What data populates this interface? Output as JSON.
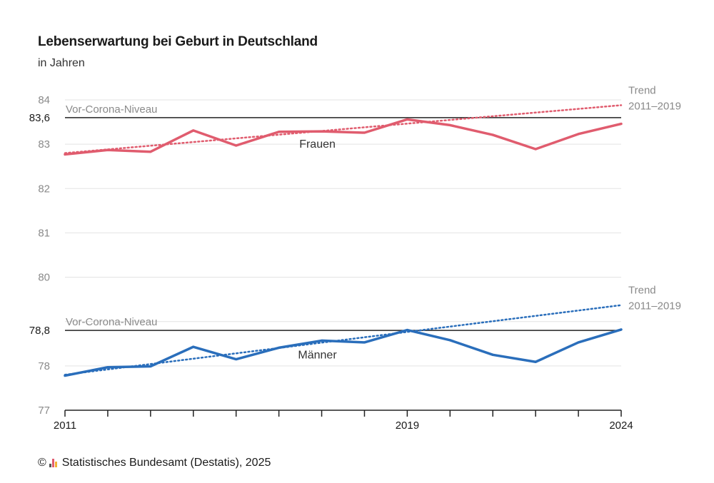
{
  "header": {
    "title": "Lebenserwartung bei Geburt in Deutschland",
    "subtitle": "in Jahren"
  },
  "footer": {
    "copyright": "©",
    "source": "Statistisches Bundesamt (Destatis), 2025"
  },
  "colors": {
    "frauen": "#e05c6e",
    "maenner": "#2a6ebb",
    "grid": "#e3e3e3",
    "axis": "#222222",
    "muted": "#8a8a8a"
  },
  "chart_data": {
    "type": "line",
    "title": "Lebenserwartung bei Geburt in Deutschland",
    "ylabel": "in Jahren",
    "xlim": [
      2011,
      2024
    ],
    "ylim": [
      77,
      84
    ],
    "x": [
      2011,
      2012,
      2013,
      2014,
      2015,
      2016,
      2017,
      2018,
      2019,
      2020,
      2021,
      2022,
      2023,
      2024
    ],
    "x_tick_labels": [
      "2011",
      "2019",
      "2024"
    ],
    "x_tick_label_years": [
      2011,
      2019,
      2024
    ],
    "y_ticks": [
      77,
      78,
      79,
      80,
      81,
      82,
      83,
      84
    ],
    "y_tick_labels": [
      "77",
      "78",
      "",
      "80",
      "81",
      "82",
      "83",
      "84"
    ],
    "series": [
      {
        "name": "Frauen",
        "color_key": "frauen",
        "values": [
          82.77,
          82.87,
          82.83,
          83.31,
          82.97,
          83.28,
          83.29,
          83.26,
          83.56,
          83.43,
          83.21,
          82.89,
          83.23,
          83.46
        ]
      },
      {
        "name": "Männer",
        "color_key": "maenner",
        "values": [
          77.78,
          77.97,
          77.99,
          78.43,
          78.15,
          78.41,
          78.57,
          78.53,
          78.81,
          78.58,
          78.25,
          78.09,
          78.53,
          78.82
        ]
      }
    ],
    "trends": [
      {
        "name": "Trend 2011–2019 Frauen",
        "label_line1": "Trend",
        "label_line2": "2011–2019",
        "from": [
          2011,
          82.8
        ],
        "to": [
          2024,
          83.88
        ],
        "color_key": "frauen"
      },
      {
        "name": "Trend 2011–2019 Männer",
        "label_line1": "Trend",
        "label_line2": "2011–2019",
        "from": [
          2011,
          77.8
        ],
        "to": [
          2024,
          79.37
        ],
        "color_key": "maenner"
      }
    ],
    "reference_lines": [
      {
        "label": "Vor-Corona-Niveau",
        "value": 83.6,
        "value_label": "83,6"
      },
      {
        "label": "Vor-Corona-Niveau",
        "value": 78.8,
        "value_label": "78,8"
      }
    ],
    "series_labels": [
      {
        "text": "Frauen",
        "x": 2016.9,
        "y": 82.92
      },
      {
        "text": "Männer",
        "x": 2016.9,
        "y": 78.17
      }
    ]
  }
}
